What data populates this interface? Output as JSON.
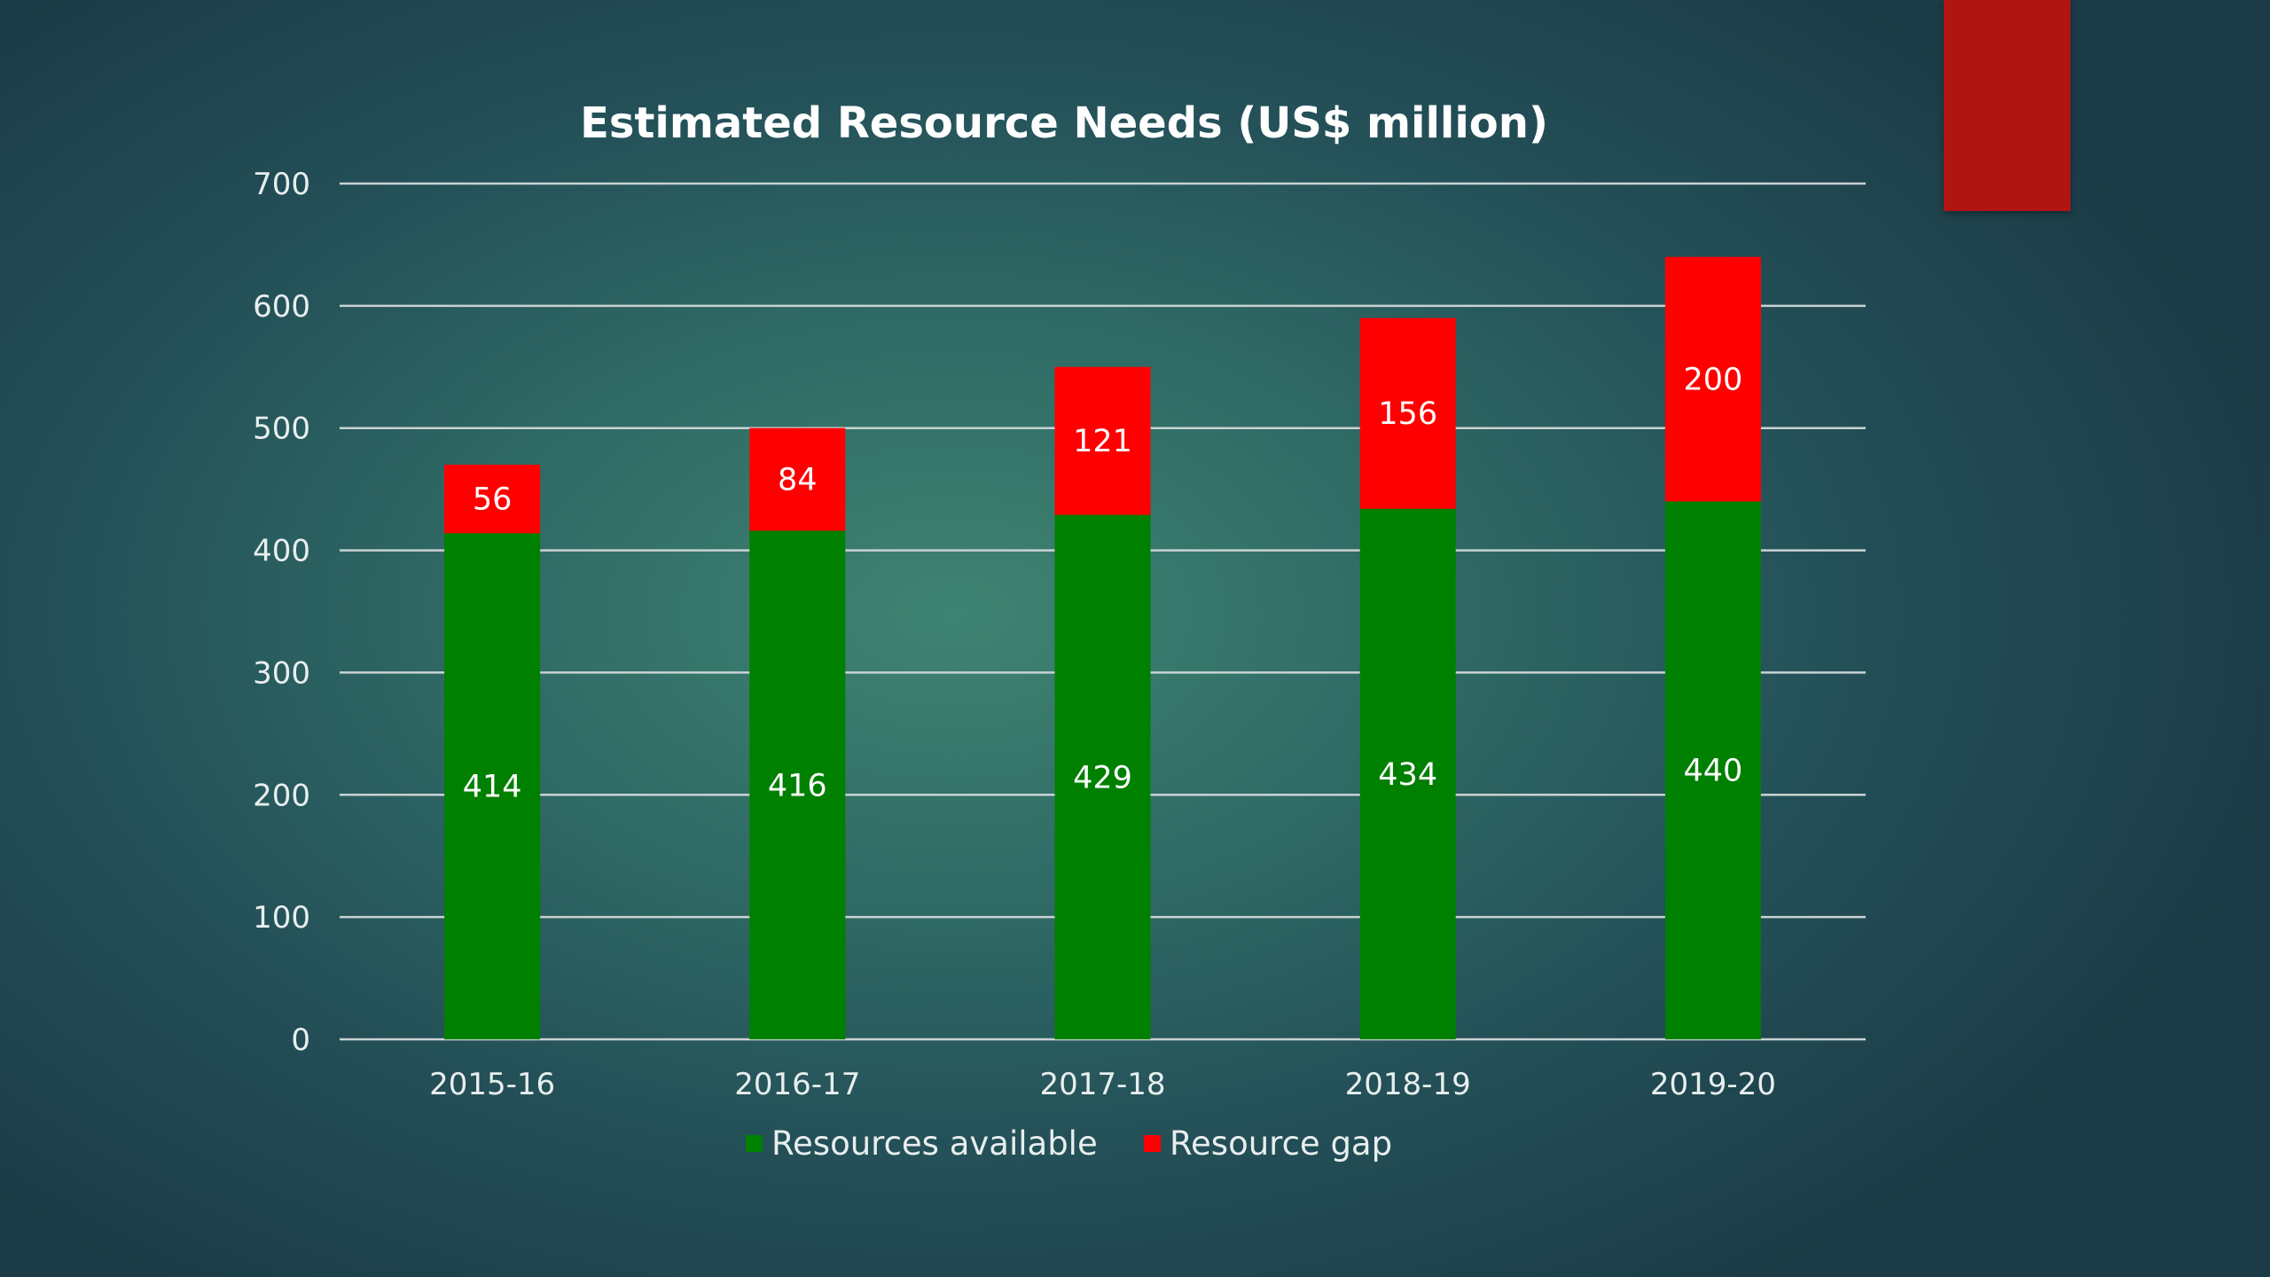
{
  "colors": {
    "accent_tab": "#b01513",
    "gridline": "#c9d2d2"
  },
  "chart_data": {
    "type": "bar",
    "stacked": true,
    "title": "Estimated Resource Needs (US$ million)",
    "xlabel": "",
    "ylabel": "",
    "categories": [
      "2015-16",
      "2016-17",
      "2017-18",
      "2018-19",
      "2019-20"
    ],
    "series": [
      {
        "name": "Resources available",
        "color": "#008000",
        "values": [
          414,
          416,
          429,
          434,
          440
        ]
      },
      {
        "name": "Resource gap",
        "color": "#ff0000",
        "values": [
          56,
          84,
          121,
          156,
          200
        ]
      }
    ],
    "ylim": [
      0,
      700
    ],
    "yticks": [
      0,
      100,
      200,
      300,
      400,
      500,
      600,
      700
    ],
    "grid": true,
    "legend": "bottom",
    "data_labels": true
  }
}
